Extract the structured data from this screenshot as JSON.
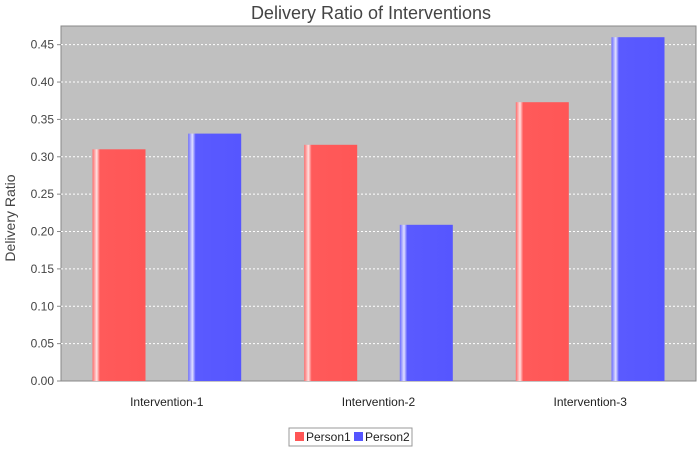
{
  "chart_data": {
    "type": "bar",
    "title": "Delivery Ratio of Interventions",
    "xlabel": "",
    "ylabel": "Delivery Ratio",
    "categories": [
      "Intervention-1",
      "Intervention-2",
      "Intervention-3"
    ],
    "series": [
      {
        "name": "Person1",
        "values": [
          0.31,
          0.316,
          0.373
        ],
        "color": "#ff5555"
      },
      {
        "name": "Person2",
        "values": [
          0.331,
          0.209,
          0.46
        ],
        "color": "#5555ff"
      }
    ],
    "ylim": [
      0,
      0.475
    ],
    "yticks": [
      "0.00",
      "0.05",
      "0.10",
      "0.15",
      "0.20",
      "0.25",
      "0.30",
      "0.35",
      "0.40",
      "0.45"
    ],
    "grid": true,
    "legend": "bottom-center",
    "plot_background": "#c0c0c0"
  }
}
